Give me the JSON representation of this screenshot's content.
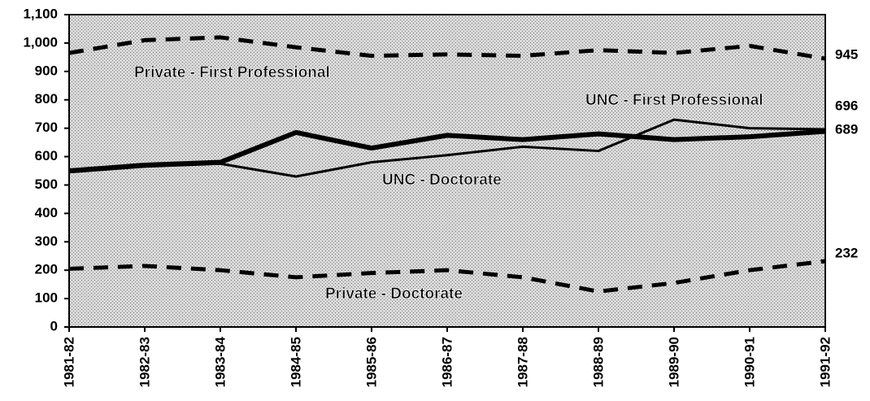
{
  "chart_data": {
    "type": "line",
    "categories": [
      "1981-82",
      "1982-83",
      "1983-84",
      "1984-85",
      "1985-86",
      "1986-87",
      "1987-88",
      "1988-89",
      "1989-90",
      "1990-91",
      "1991-92"
    ],
    "series": [
      {
        "name": "Private - First Professional",
        "color": "#000000",
        "dashed": true,
        "width": 5,
        "values": [
          965,
          1010,
          1020,
          985,
          955,
          960,
          955,
          975,
          965,
          990,
          945
        ]
      },
      {
        "name": "UNC - First Professional",
        "color": "#000000",
        "dashed": false,
        "width": 3,
        "values": [
          545,
          565,
          575,
          530,
          580,
          605,
          635,
          620,
          730,
          700,
          696
        ]
      },
      {
        "name": "UNC - Doctorate",
        "color": "#000000",
        "dashed": false,
        "width": 6,
        "values": [
          550,
          570,
          580,
          685,
          630,
          675,
          660,
          680,
          660,
          670,
          689
        ]
      },
      {
        "name": "Private - Doctorate",
        "color": "#000000",
        "dashed": true,
        "width": 5,
        "values": [
          205,
          215,
          200,
          175,
          190,
          200,
          175,
          125,
          155,
          200,
          232
        ]
      }
    ],
    "ylim": [
      0,
      1100
    ],
    "yticks": [
      0,
      100,
      200,
      300,
      400,
      500,
      600,
      700,
      800,
      900,
      {
        "value": 1000,
        "label": "1,000"
      },
      {
        "value": 1100,
        "label": "1,100"
      }
    ]
  }
}
